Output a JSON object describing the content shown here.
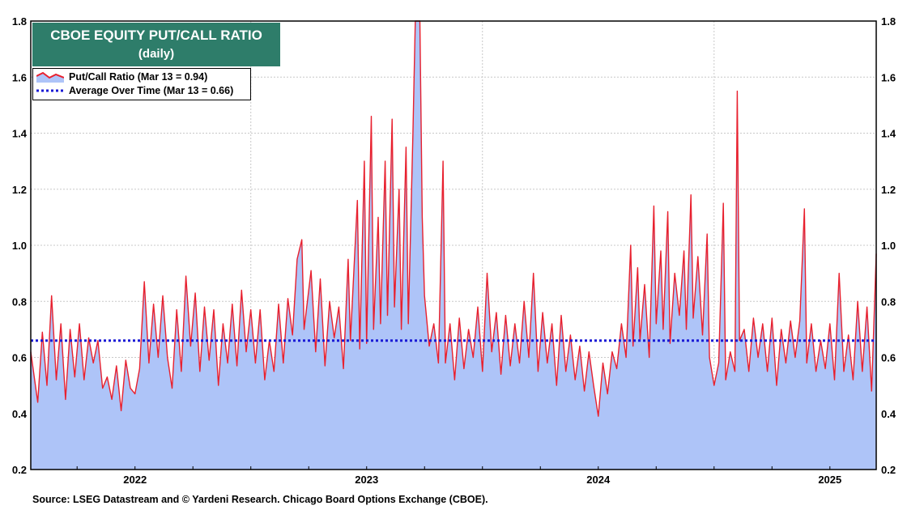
{
  "chart_data": {
    "type": "area",
    "title": "CBOE EQUITY PUT/CALL RATIO",
    "subtitle": "(daily)",
    "ylim": [
      0.2,
      1.8
    ],
    "y_ticks": [
      "0.2",
      "0.4",
      "0.6",
      "0.8",
      "1.0",
      "1.2",
      "1.4",
      "1.6",
      "1.8"
    ],
    "x_range": [
      2021.55,
      2025.2
    ],
    "x_ticks": [
      "2022",
      "2023",
      "2024",
      "2025"
    ],
    "x_tick_positions": [
      2022.0,
      2023.0,
      2024.0,
      2025.0
    ],
    "grid": true,
    "legend_placement": "top-left",
    "colors": {
      "series": "#e8202e",
      "area": "#aec4f8",
      "average": "#1a1ad6",
      "title_bg": "#2e7d6a"
    },
    "series": [
      {
        "name": "Put/Call Ratio (Mar 13 = 0.94)",
        "style": "line+area",
        "points": [
          [
            2021.55,
            0.62
          ],
          [
            2021.58,
            0.44
          ],
          [
            2021.6,
            0.69
          ],
          [
            2021.62,
            0.5
          ],
          [
            2021.64,
            0.82
          ],
          [
            2021.66,
            0.52
          ],
          [
            2021.68,
            0.72
          ],
          [
            2021.7,
            0.45
          ],
          [
            2021.72,
            0.7
          ],
          [
            2021.74,
            0.53
          ],
          [
            2021.76,
            0.72
          ],
          [
            2021.78,
            0.52
          ],
          [
            2021.8,
            0.67
          ],
          [
            2021.82,
            0.58
          ],
          [
            2021.84,
            0.66
          ],
          [
            2021.86,
            0.49
          ],
          [
            2021.88,
            0.53
          ],
          [
            2021.9,
            0.45
          ],
          [
            2021.92,
            0.57
          ],
          [
            2021.94,
            0.41
          ],
          [
            2021.96,
            0.59
          ],
          [
            2021.98,
            0.49
          ],
          [
            2022.0,
            0.47
          ],
          [
            2022.02,
            0.56
          ],
          [
            2022.04,
            0.87
          ],
          [
            2022.06,
            0.58
          ],
          [
            2022.08,
            0.79
          ],
          [
            2022.1,
            0.6
          ],
          [
            2022.12,
            0.82
          ],
          [
            2022.14,
            0.6
          ],
          [
            2022.16,
            0.49
          ],
          [
            2022.18,
            0.77
          ],
          [
            2022.2,
            0.55
          ],
          [
            2022.22,
            0.89
          ],
          [
            2022.24,
            0.64
          ],
          [
            2022.26,
            0.83
          ],
          [
            2022.28,
            0.55
          ],
          [
            2022.3,
            0.78
          ],
          [
            2022.32,
            0.59
          ],
          [
            2022.34,
            0.77
          ],
          [
            2022.36,
            0.5
          ],
          [
            2022.38,
            0.72
          ],
          [
            2022.4,
            0.58
          ],
          [
            2022.42,
            0.79
          ],
          [
            2022.44,
            0.57
          ],
          [
            2022.46,
            0.84
          ],
          [
            2022.48,
            0.62
          ],
          [
            2022.5,
            0.77
          ],
          [
            2022.52,
            0.58
          ],
          [
            2022.54,
            0.77
          ],
          [
            2022.56,
            0.52
          ],
          [
            2022.58,
            0.66
          ],
          [
            2022.6,
            0.55
          ],
          [
            2022.62,
            0.79
          ],
          [
            2022.64,
            0.58
          ],
          [
            2022.66,
            0.81
          ],
          [
            2022.68,
            0.68
          ],
          [
            2022.7,
            0.95
          ],
          [
            2022.72,
            1.02
          ],
          [
            2022.73,
            0.7
          ],
          [
            2022.76,
            0.91
          ],
          [
            2022.78,
            0.62
          ],
          [
            2022.8,
            0.88
          ],
          [
            2022.82,
            0.57
          ],
          [
            2022.84,
            0.8
          ],
          [
            2022.86,
            0.67
          ],
          [
            2022.88,
            0.78
          ],
          [
            2022.9,
            0.56
          ],
          [
            2022.92,
            0.95
          ],
          [
            2022.93,
            0.66
          ],
          [
            2022.96,
            1.16
          ],
          [
            2022.97,
            0.63
          ],
          [
            2022.99,
            1.3
          ],
          [
            2023.0,
            0.65
          ],
          [
            2023.02,
            1.46
          ],
          [
            2023.03,
            0.7
          ],
          [
            2023.05,
            1.1
          ],
          [
            2023.06,
            0.72
          ],
          [
            2023.08,
            1.3
          ],
          [
            2023.09,
            0.75
          ],
          [
            2023.11,
            1.45
          ],
          [
            2023.12,
            0.78
          ],
          [
            2023.14,
            1.2
          ],
          [
            2023.15,
            0.7
          ],
          [
            2023.17,
            1.35
          ],
          [
            2023.18,
            0.72
          ],
          [
            2023.2,
            1.4
          ],
          [
            2023.21,
            1.8
          ],
          [
            2023.22,
            1.8
          ],
          [
            2023.23,
            1.8
          ],
          [
            2023.24,
            1.1
          ],
          [
            2023.25,
            0.82
          ],
          [
            2023.27,
            0.64
          ],
          [
            2023.29,
            0.72
          ],
          [
            2023.31,
            0.58
          ],
          [
            2023.33,
            1.3
          ],
          [
            2023.34,
            0.58
          ],
          [
            2023.36,
            0.72
          ],
          [
            2023.38,
            0.52
          ],
          [
            2023.4,
            0.74
          ],
          [
            2023.42,
            0.56
          ],
          [
            2023.44,
            0.7
          ],
          [
            2023.46,
            0.6
          ],
          [
            2023.48,
            0.78
          ],
          [
            2023.5,
            0.55
          ],
          [
            2023.52,
            0.9
          ],
          [
            2023.54,
            0.62
          ],
          [
            2023.56,
            0.76
          ],
          [
            2023.58,
            0.54
          ],
          [
            2023.6,
            0.75
          ],
          [
            2023.62,
            0.57
          ],
          [
            2023.64,
            0.72
          ],
          [
            2023.66,
            0.58
          ],
          [
            2023.68,
            0.8
          ],
          [
            2023.7,
            0.6
          ],
          [
            2023.72,
            0.9
          ],
          [
            2023.74,
            0.55
          ],
          [
            2023.76,
            0.76
          ],
          [
            2023.78,
            0.58
          ],
          [
            2023.8,
            0.72
          ],
          [
            2023.82,
            0.5
          ],
          [
            2023.84,
            0.75
          ],
          [
            2023.86,
            0.55
          ],
          [
            2023.88,
            0.68
          ],
          [
            2023.9,
            0.52
          ],
          [
            2023.92,
            0.64
          ],
          [
            2023.94,
            0.48
          ],
          [
            2023.96,
            0.62
          ],
          [
            2023.98,
            0.5
          ],
          [
            2024.0,
            0.39
          ],
          [
            2024.02,
            0.58
          ],
          [
            2024.04,
            0.47
          ],
          [
            2024.06,
            0.62
          ],
          [
            2024.08,
            0.56
          ],
          [
            2024.1,
            0.72
          ],
          [
            2024.12,
            0.6
          ],
          [
            2024.14,
            1.0
          ],
          [
            2024.15,
            0.64
          ],
          [
            2024.17,
            0.92
          ],
          [
            2024.18,
            0.66
          ],
          [
            2024.2,
            0.86
          ],
          [
            2024.22,
            0.6
          ],
          [
            2024.24,
            1.14
          ],
          [
            2024.25,
            0.72
          ],
          [
            2024.27,
            0.98
          ],
          [
            2024.28,
            0.7
          ],
          [
            2024.3,
            1.12
          ],
          [
            2024.31,
            0.65
          ],
          [
            2024.33,
            0.9
          ],
          [
            2024.35,
            0.75
          ],
          [
            2024.37,
            0.98
          ],
          [
            2024.38,
            0.7
          ],
          [
            2024.4,
            1.18
          ],
          [
            2024.41,
            0.74
          ],
          [
            2024.43,
            0.96
          ],
          [
            2024.45,
            0.68
          ],
          [
            2024.47,
            1.04
          ],
          [
            2024.48,
            0.6
          ],
          [
            2024.5,
            0.5
          ],
          [
            2024.52,
            0.58
          ],
          [
            2024.54,
            1.15
          ],
          [
            2024.55,
            0.52
          ],
          [
            2024.57,
            0.62
          ],
          [
            2024.59,
            0.55
          ],
          [
            2024.6,
            1.55
          ],
          [
            2024.61,
            0.66
          ],
          [
            2024.63,
            0.7
          ],
          [
            2024.65,
            0.55
          ],
          [
            2024.67,
            0.74
          ],
          [
            2024.69,
            0.6
          ],
          [
            2024.71,
            0.72
          ],
          [
            2024.73,
            0.55
          ],
          [
            2024.75,
            0.74
          ],
          [
            2024.77,
            0.5
          ],
          [
            2024.79,
            0.7
          ],
          [
            2024.81,
            0.58
          ],
          [
            2024.83,
            0.73
          ],
          [
            2024.85,
            0.6
          ],
          [
            2024.87,
            0.73
          ],
          [
            2024.89,
            1.13
          ],
          [
            2024.9,
            0.58
          ],
          [
            2024.92,
            0.72
          ],
          [
            2024.94,
            0.55
          ],
          [
            2024.96,
            0.66
          ],
          [
            2024.98,
            0.56
          ],
          [
            2025.0,
            0.72
          ],
          [
            2025.02,
            0.52
          ],
          [
            2025.04,
            0.9
          ],
          [
            2025.06,
            0.55
          ],
          [
            2025.08,
            0.68
          ],
          [
            2025.1,
            0.52
          ],
          [
            2025.12,
            0.8
          ],
          [
            2025.14,
            0.55
          ],
          [
            2025.16,
            0.78
          ],
          [
            2025.18,
            0.48
          ],
          [
            2025.2,
            0.97
          ]
        ]
      },
      {
        "name": "Average Over Time (Mar 13 = 0.66)",
        "style": "dotted",
        "value": 0.66
      }
    ],
    "source": "Source: LSEG Datastream and © Yardeni Research. Chicago Board Options Exchange (CBOE)."
  }
}
